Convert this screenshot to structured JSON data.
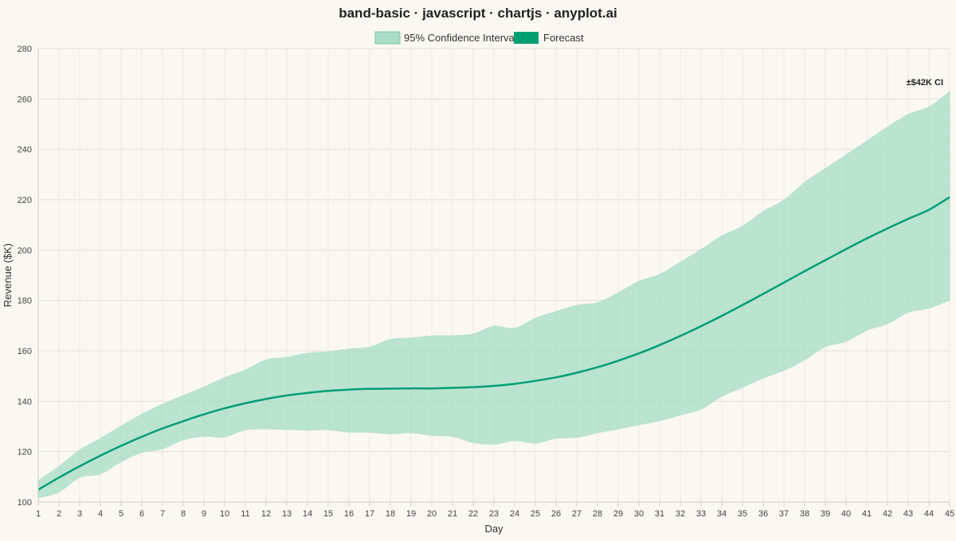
{
  "chart_data": {
    "type": "area",
    "title": "band-basic · javascript · chartjs · anyplot.ai",
    "xlabel": "Day",
    "ylabel": "Revenue ($K)",
    "ylim": [
      100,
      280
    ],
    "yticks": [
      100,
      120,
      140,
      160,
      180,
      200,
      220,
      240,
      260,
      280
    ],
    "grid": true,
    "legend_position": "top-center",
    "legend": [
      {
        "label": "95% Confidence Interval",
        "kind": "band"
      },
      {
        "label": "Forecast",
        "kind": "line"
      }
    ],
    "annotation": "±$42K CI",
    "colors": {
      "line": "#009E73",
      "band_fill": "#A8DCC6",
      "background": "#FAF8F1",
      "grid": "#E2DFD6"
    },
    "x": [
      "1",
      "2",
      "3",
      "4",
      "5",
      "6",
      "7",
      "8",
      "9",
      "10",
      "11",
      "12",
      "13",
      "14",
      "15",
      "16",
      "17",
      "18",
      "19",
      "20",
      "21",
      "22",
      "23",
      "24",
      "25",
      "26",
      "27",
      "28",
      "29",
      "30",
      "31",
      "32",
      "33",
      "34",
      "35",
      "36",
      "37",
      "38",
      "39",
      "40",
      "41",
      "42",
      "43",
      "44",
      "45"
    ],
    "series": [
      {
        "name": "Forecast",
        "values": [
          104.9,
          109.7,
          114.2,
          118.4,
          122.3,
          125.9,
          129.2,
          132.1,
          134.8,
          137.2,
          139.2,
          140.9,
          142.3,
          143.3,
          144.1,
          144.6,
          144.9,
          145.0,
          145.1,
          145.1,
          145.3,
          145.6,
          146.1,
          146.9,
          148.1,
          149.5,
          151.3,
          153.5,
          156.1,
          159.0,
          162.3,
          165.9,
          169.8,
          173.9,
          178.2,
          182.6,
          187.1,
          191.6,
          196.0,
          200.4,
          204.6,
          208.6,
          212.4,
          216.0,
          221.0
        ]
      },
      {
        "name": "95% Confidence Interval (lower)",
        "values": [
          101.5,
          103.8,
          109.6,
          111.0,
          115.8,
          119.5,
          121.0,
          124.5,
          125.9,
          125.7,
          128.5,
          128.9,
          128.6,
          128.4,
          128.5,
          127.6,
          127.5,
          126.9,
          127.3,
          126.3,
          125.9,
          123.4,
          122.8,
          124.2,
          123.2,
          125.1,
          125.5,
          127.3,
          128.8,
          130.5,
          132.1,
          134.4,
          136.7,
          141.8,
          145.3,
          149.0,
          152.1,
          156.2,
          161.5,
          163.6,
          168.0,
          170.6,
          175.1,
          176.8,
          180.0
        ]
      },
      {
        "name": "95% Confidence Interval (upper)",
        "values": [
          108.7,
          114.3,
          120.8,
          125.4,
          130.3,
          135.0,
          139.0,
          142.4,
          145.8,
          149.5,
          152.5,
          156.6,
          157.6,
          159.2,
          159.8,
          160.9,
          161.6,
          164.7,
          165.3,
          166.1,
          166.2,
          166.9,
          169.9,
          169.1,
          173.1,
          175.8,
          178.2,
          179.3,
          183.2,
          187.8,
          190.5,
          195.4,
          200.4,
          205.8,
          209.6,
          215.5,
          220.0,
          227.0,
          232.5,
          238.0,
          243.5,
          249.0,
          254.0,
          257.0,
          263.0
        ]
      }
    ]
  }
}
